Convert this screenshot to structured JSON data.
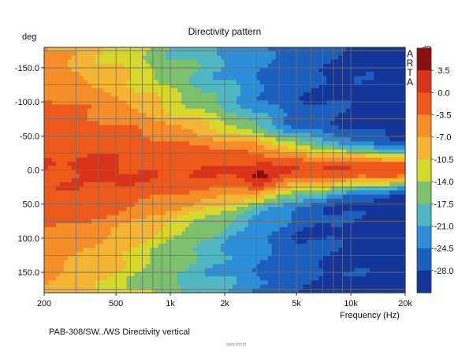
{
  "chart_data": {
    "type": "heatmap",
    "title": "Directivity pattern",
    "xlabel": "Frequency (Hz)",
    "ylabel": "deg",
    "x_scale": "log",
    "xlim": [
      200,
      20000
    ],
    "ylim": [
      -180,
      180
    ],
    "y_axis_inverted": true,
    "x_ticks": [
      {
        "value": 200,
        "label": "200"
      },
      {
        "value": 500,
        "label": "500"
      },
      {
        "value": 1000,
        "label": "1k"
      },
      {
        "value": 2000,
        "label": "2k"
      },
      {
        "value": 5000,
        "label": "5k"
      },
      {
        "value": 10000,
        "label": "10k"
      },
      {
        "value": 20000,
        "label": "20k"
      }
    ],
    "x_gridlines": [
      200,
      300,
      400,
      500,
      600,
      700,
      800,
      900,
      1000,
      2000,
      3000,
      4000,
      5000,
      6000,
      7000,
      8000,
      9000,
      10000,
      20000
    ],
    "y_ticks": [
      {
        "value": -150,
        "label": "-150.0"
      },
      {
        "value": -100,
        "label": "-100.0"
      },
      {
        "value": -50,
        "label": "-50.0"
      },
      {
        "value": 0,
        "label": "0.0"
      },
      {
        "value": 50,
        "label": "50.0"
      },
      {
        "value": 100,
        "label": "100.0"
      },
      {
        "value": 150,
        "label": "150.0"
      }
    ],
    "y_gridlines": [
      -175,
      -150,
      -125,
      -100,
      -75,
      -50,
      -25,
      0,
      25,
      50,
      75,
      100,
      125,
      150,
      175
    ],
    "grid": true,
    "brand_text": [
      "A",
      "R",
      "T",
      "A"
    ],
    "colorbar": {
      "unit": "dB",
      "position": "right",
      "bins": [
        {
          "from": 3.5,
          "to": 7.0,
          "color": "#8b0f0f"
        },
        {
          "from": 0.0,
          "to": 3.5,
          "color": "#d9341a"
        },
        {
          "from": -3.5,
          "to": 0.0,
          "color": "#ee5a1c"
        },
        {
          "from": -7.0,
          "to": -3.5,
          "color": "#f58e28"
        },
        {
          "from": -10.5,
          "to": -7.0,
          "color": "#f3b533"
        },
        {
          "from": -14.0,
          "to": -10.5,
          "color": "#d6d92b"
        },
        {
          "from": -17.5,
          "to": -14.0,
          "color": "#7dc06e"
        },
        {
          "from": -21.0,
          "to": -17.5,
          "color": "#4fb6c2"
        },
        {
          "from": -24.5,
          "to": -21.0,
          "color": "#2d8fd8"
        },
        {
          "from": -28.0,
          "to": -24.5,
          "color": "#1b5fbf"
        },
        {
          "from": -31.5,
          "to": -28.0,
          "color": "#14369a"
        }
      ],
      "tick_labels": [
        "3.5",
        "0.0",
        "-3.5",
        "-7.0",
        "-10.5",
        "-14.0",
        "-17.5",
        "-21.0",
        "-24.5",
        "-28.0"
      ]
    },
    "level_model": {
      "unit": "dB",
      "beamwidth_deg": {
        "frequency_hz": [
          200,
          500,
          1000,
          2000,
          3000,
          5000,
          10000,
          20000
        ],
        "halfwidth": [
          95,
          75,
          55,
          42,
          35,
          26,
          20,
          16
        ]
      },
      "floor_db": {
        "frequency_hz": [
          200,
          500,
          1000,
          2000,
          3000,
          5000,
          10000,
          20000
        ],
        "value": [
          -9,
          -13,
          -17,
          -21,
          -24,
          -27,
          -29,
          -30
        ]
      },
      "hot_spots": [
        {
          "frequency_hz": 3100,
          "angle_deg": 15,
          "level_db": 5.5
        },
        {
          "frequency_hz": 3000,
          "angle_deg": -35,
          "level_db": 1.5
        },
        {
          "frequency_hz": 450,
          "angle_deg": 3,
          "level_db": 1.0
        },
        {
          "frequency_hz": 15000,
          "angle_deg": 15,
          "level_db": 1.0
        }
      ],
      "asymmetry": {
        "negative_angles_extra_spread": 1.15
      }
    }
  },
  "footer": {
    "caption": "PAB-308/SW../WS  Directivity vertical",
    "watermark": "www.ixbt.pl"
  }
}
